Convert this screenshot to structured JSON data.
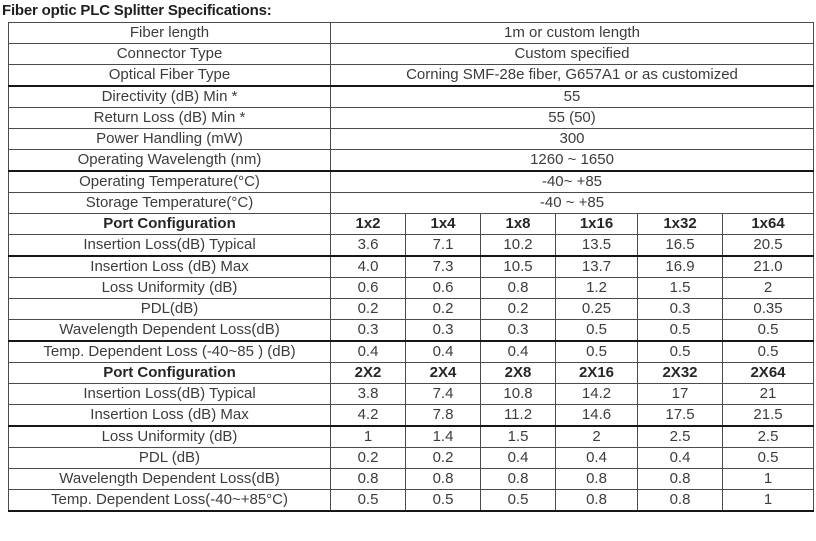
{
  "title": "Fiber optic PLC Splitter Specifications:",
  "colors": {
    "text": "#3c3c3c",
    "header_text": "#262626",
    "accent_red": "#e10000",
    "border_thin": "#4b4b4b",
    "border_thick": "#161616"
  },
  "general_specs": [
    {
      "label": "Fiber length",
      "value": "1m or custom length"
    },
    {
      "label": "Connector Type",
      "value": "Custom specified"
    },
    {
      "label": "Optical Fiber Type",
      "value": "Corning SMF-28e fiber, G657A1 or as customized"
    },
    {
      "label": "Directivity (dB) Min *",
      "value": "55"
    },
    {
      "label": "Return Loss (dB) Min *",
      "value": "55 (50)"
    },
    {
      "label": "Power Handling (mW)",
      "value": "300"
    },
    {
      "label": "Operating Wavelength (nm)",
      "value": "1260 ~ 1650"
    },
    {
      "label": "Operating Temperature(°C)",
      "value": "-40~ +85"
    },
    {
      "label": "Storage Temperature(°C)",
      "value": "-40 ~ +85"
    }
  ],
  "sections": [
    {
      "header": {
        "label": "Port Configuration",
        "configs": [
          "1x2",
          "1x4",
          "1x8",
          "1x16",
          "1x32",
          "1x64"
        ],
        "highlighted_config": "1x4"
      },
      "rows": [
        {
          "label": "Insertion Loss(dB) Typical",
          "values": [
            "3.6",
            "7.1",
            "10.2",
            "13.5",
            "16.5",
            "20.5"
          ]
        },
        {
          "label": "Insertion Loss (dB) Max",
          "values": [
            "4.0",
            "7.3",
            "10.5",
            "13.7",
            "16.9",
            "21.0"
          ]
        },
        {
          "label": "Loss Uniformity (dB)",
          "values": [
            "0.6",
            "0.6",
            "0.8",
            "1.2",
            "1.5",
            "2"
          ]
        },
        {
          "label": "PDL(dB)",
          "values": [
            "0.2",
            "0.2",
            "0.2",
            "0.25",
            "0.3",
            "0.35"
          ]
        },
        {
          "label": "Wavelength Dependent Loss(dB)",
          "values": [
            "0.3",
            "0.3",
            "0.3",
            "0.5",
            "0.5",
            "0.5"
          ]
        },
        {
          "label": "Temp. Dependent Loss (-40~85 ) (dB)",
          "values": [
            "0.4",
            "0.4",
            "0.4",
            "0.5",
            "0.5",
            "0.5"
          ]
        }
      ]
    },
    {
      "header": {
        "label": "Port Configuration",
        "configs": [
          "2X2",
          "2X4",
          "2X8",
          "2X16",
          "2X32",
          "2X64"
        ],
        "highlighted_config": ""
      },
      "rows": [
        {
          "label": "Insertion Loss(dB) Typical",
          "values": [
            "3.8",
            "7.4",
            "10.8",
            "14.2",
            "17",
            "21"
          ]
        },
        {
          "label": "Insertion Loss (dB) Max",
          "values": [
            "4.2",
            "7.8",
            "11.2",
            "14.6",
            "17.5",
            "21.5"
          ]
        },
        {
          "label": "Loss Uniformity (dB)",
          "values": [
            "1",
            "1.4",
            "1.5",
            "2",
            "2.5",
            "2.5"
          ]
        },
        {
          "label": "PDL (dB)",
          "values": [
            "0.2",
            "0.2",
            "0.4",
            "0.4",
            "0.4",
            "0.5"
          ]
        },
        {
          "label": "Wavelength Dependent Loss(dB)",
          "values": [
            "0.8",
            "0.8",
            "0.8",
            "0.8",
            "0.8",
            "1"
          ]
        },
        {
          "label": "Temp. Dependent Loss(-40~+85°C)",
          "values": [
            "0.5",
            "0.5",
            "0.5",
            "0.8",
            "0.8",
            "1"
          ]
        }
      ]
    }
  ]
}
